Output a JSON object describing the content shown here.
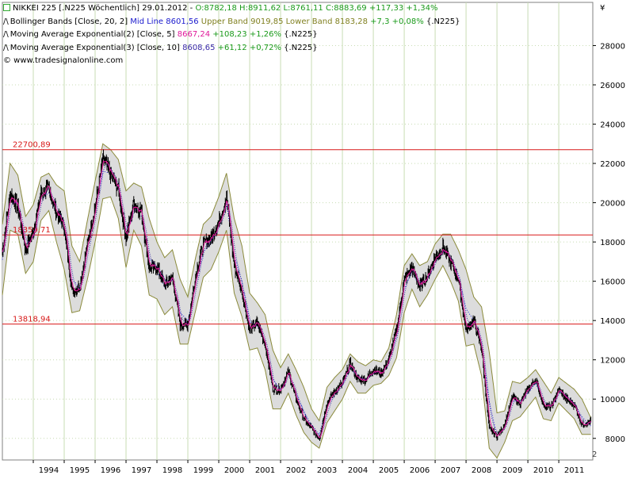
{
  "header": {
    "instrument": "NIKKEI 225 [.N225  Wöchentlich] 29.01.2012 -",
    "ohlc": "O:8782,18 H:8911,62 L:8761,11 C:8883,69 +117,33 +1,34%",
    "bb_prefix": "Bollinger Bands [Close, 20, 2]",
    "bb_mid": "Mid Line 8601,56",
    "bb_bands": "Upper Band 9019,85 Lower Band 8183,28",
    "bb_change": "+7,3 +0,08%",
    "bb_suffix": "{.N225}",
    "ema2_prefix": "Moving Average Exponential(2) [Close, 5]",
    "ema2_value": "8667,24",
    "ema2_change": "+108,23 +1,26%",
    "ema2_suffix": "{.N225}",
    "ema3_prefix": "Moving Average Exponential(3) [Close, 10]",
    "ema3_value": "8608,65",
    "ema3_change": "+61,12 +0,72%",
    "ema3_suffix": "{.N225}",
    "copyright": "© www.tradesignalonline.com"
  },
  "colors": {
    "candles": "#000000",
    "band_fill": "#dcdcdc",
    "band_line": "#8a8a3a",
    "mid_line": "#1a1adc",
    "ema5": "#e0189a",
    "ema10": "#3a2aa8",
    "hline": "#d81818",
    "grid": "#c8dcb4",
    "up_text": "#1a9a1a",
    "ema5_text": "#e0189a",
    "mid_text": "#1a1acd",
    "band_text": "#808020"
  },
  "chart_data": {
    "type": "line",
    "title": "NIKKEI 225 [.N225  Wöchentlich] 29.01.2012",
    "ylabel": "¥",
    "ylim": [
      6900,
      30200
    ],
    "y_ticks": [
      8000,
      10000,
      12000,
      14000,
      16000,
      18000,
      20000,
      22000,
      24000,
      26000,
      28000
    ],
    "x_ticks": [
      "1994",
      "1995",
      "1996",
      "1997",
      "1998",
      "1999",
      "2000",
      "2001",
      "2002",
      "2003",
      "2004",
      "2005",
      "2006",
      "2007",
      "2008",
      "2009",
      "2010",
      "2011"
    ],
    "xlim": [
      1993.0,
      2012.1
    ],
    "grid": true,
    "hlines": [
      {
        "value": 22700.89,
        "label": "22700,89"
      },
      {
        "value": 18359.71,
        "label": "18359,71"
      },
      {
        "value": 13818.94,
        "label": "13818,94"
      }
    ],
    "series": [
      {
        "name": "NIKKEI 225",
        "x": [
          1993.0,
          1993.25,
          1993.5,
          1993.75,
          1994.0,
          1994.25,
          1994.5,
          1994.75,
          1995.0,
          1995.25,
          1995.5,
          1995.75,
          1996.0,
          1996.25,
          1996.5,
          1996.75,
          1997.0,
          1997.25,
          1997.5,
          1997.75,
          1998.0,
          1998.25,
          1998.5,
          1998.75,
          1999.0,
          1999.25,
          1999.5,
          1999.75,
          2000.0,
          2000.25,
          2000.5,
          2000.75,
          2001.0,
          2001.25,
          2001.5,
          2001.75,
          2002.0,
          2002.25,
          2002.5,
          2002.75,
          2003.0,
          2003.25,
          2003.5,
          2003.75,
          2004.0,
          2004.25,
          2004.5,
          2004.75,
          2005.0,
          2005.25,
          2005.5,
          2005.75,
          2006.0,
          2006.25,
          2006.5,
          2006.75,
          2007.0,
          2007.25,
          2007.5,
          2007.75,
          2008.0,
          2008.25,
          2008.5,
          2008.75,
          2009.0,
          2009.25,
          2009.5,
          2009.75,
          2010.0,
          2010.25,
          2010.5,
          2010.75,
          2011.0,
          2011.25,
          2011.5,
          2011.75,
          2012.05
        ],
        "values": [
          17500,
          20500,
          19800,
          17600,
          18500,
          20500,
          20700,
          19500,
          18800,
          15500,
          15700,
          17900,
          19800,
          22200,
          21500,
          20700,
          18200,
          20000,
          19500,
          16700,
          16700,
          15800,
          16200,
          13800,
          13800,
          16300,
          17900,
          18200,
          19000,
          20300,
          16800,
          15500,
          13500,
          13900,
          12800,
          10500,
          10500,
          11400,
          10000,
          9000,
          8500,
          8000,
          9800,
          10400,
          10800,
          11800,
          11000,
          11000,
          11500,
          11300,
          12000,
          13500,
          16100,
          16700,
          15700,
          16300,
          17200,
          17700,
          17000,
          16100,
          13500,
          14000,
          12600,
          8500,
          8100,
          8700,
          10100,
          9800,
          10500,
          11000,
          9700,
          9600,
          10500,
          10000,
          9700,
          8700,
          8884
        ]
      },
      {
        "name": "Upper Band",
        "x": [
          1993.0,
          1993.25,
          1993.5,
          1993.75,
          1994.0,
          1994.25,
          1994.5,
          1994.75,
          1995.0,
          1995.25,
          1995.5,
          1995.75,
          1996.0,
          1996.25,
          1996.5,
          1996.75,
          1997.0,
          1997.25,
          1997.5,
          1997.75,
          1998.0,
          1998.25,
          1998.5,
          1998.75,
          1999.0,
          1999.25,
          1999.5,
          1999.75,
          2000.0,
          2000.25,
          2000.5,
          2000.75,
          2001.0,
          2001.25,
          2001.5,
          2001.75,
          2002.0,
          2002.25,
          2002.5,
          2002.75,
          2003.0,
          2003.25,
          2003.5,
          2003.75,
          2004.0,
          2004.25,
          2004.5,
          2004.75,
          2005.0,
          2005.25,
          2005.5,
          2005.75,
          2006.0,
          2006.25,
          2006.5,
          2006.75,
          2007.0,
          2007.25,
          2007.5,
          2007.75,
          2008.0,
          2008.25,
          2008.5,
          2008.75,
          2009.0,
          2009.25,
          2009.5,
          2009.75,
          2010.0,
          2010.25,
          2010.5,
          2010.75,
          2011.0,
          2011.25,
          2011.5,
          2011.75,
          2012.05
        ],
        "values": [
          18900,
          22000,
          21400,
          19300,
          19900,
          21300,
          21500,
          20900,
          20600,
          17800,
          17000,
          19100,
          21100,
          23000,
          22700,
          22200,
          20600,
          21000,
          20800,
          19200,
          18000,
          17200,
          17600,
          16100,
          15200,
          17200,
          18900,
          19300,
          20300,
          21500,
          19200,
          17800,
          15400,
          14900,
          14300,
          12500,
          11600,
          12300,
          11500,
          10600,
          9500,
          8900,
          10600,
          11100,
          11500,
          12300,
          11900,
          11700,
          12000,
          11900,
          12600,
          14300,
          16800,
          17400,
          16800,
          17000,
          17900,
          18400,
          18400,
          17600,
          16600,
          15200,
          14700,
          12400,
          9300,
          9400,
          10900,
          10800,
          11100,
          11500,
          10900,
          10300,
          11100,
          10800,
          10500,
          10000,
          9000
        ]
      },
      {
        "name": "Lower Band",
        "x": [
          1993.0,
          1993.25,
          1993.5,
          1993.75,
          1994.0,
          1994.25,
          1994.5,
          1994.75,
          1995.0,
          1995.25,
          1995.5,
          1995.75,
          1996.0,
          1996.25,
          1996.5,
          1996.75,
          1997.0,
          1997.25,
          1997.5,
          1997.75,
          1998.0,
          1998.25,
          1998.5,
          1998.75,
          1999.0,
          1999.25,
          1999.5,
          1999.75,
          2000.0,
          2000.25,
          2000.5,
          2000.75,
          2001.0,
          2001.25,
          2001.5,
          2001.75,
          2002.0,
          2002.25,
          2002.5,
          2002.75,
          2003.0,
          2003.25,
          2003.5,
          2003.75,
          2004.0,
          2004.25,
          2004.5,
          2004.75,
          2005.0,
          2005.25,
          2005.5,
          2005.75,
          2006.0,
          2006.25,
          2006.5,
          2006.75,
          2007.0,
          2007.25,
          2007.5,
          2007.75,
          2008.0,
          2008.25,
          2008.5,
          2008.75,
          2009.0,
          2009.25,
          2009.5,
          2009.75,
          2010.0,
          2010.25,
          2010.5,
          2010.75,
          2011.0,
          2011.25,
          2011.5,
          2011.75,
          2012.05
        ],
        "values": [
          15300,
          18600,
          18400,
          16400,
          17000,
          19100,
          19600,
          18000,
          16600,
          14400,
          14500,
          16100,
          18000,
          20200,
          20300,
          19200,
          16700,
          18600,
          17800,
          15300,
          15100,
          14300,
          14700,
          12800,
          12800,
          14500,
          16200,
          16600,
          17500,
          18600,
          15400,
          14200,
          12500,
          12600,
          11500,
          9500,
          9500,
          10300,
          9200,
          8300,
          7800,
          7500,
          8800,
          9400,
          10000,
          10900,
          10300,
          10300,
          10700,
          10800,
          11200,
          12100,
          14400,
          15600,
          14700,
          15300,
          16100,
          16800,
          16000,
          15000,
          12700,
          12800,
          11200,
          7500,
          7000,
          7800,
          8900,
          9100,
          9600,
          10100,
          9000,
          8900,
          9800,
          9400,
          9000,
          8200,
          8200
        ]
      },
      {
        "name": "Mid Line",
        "x": [
          1993.0,
          1993.25,
          1993.5,
          1993.75,
          1994.0,
          1994.25,
          1994.5,
          1994.75,
          1995.0,
          1995.25,
          1995.5,
          1995.75,
          1996.0,
          1996.25,
          1996.5,
          1996.75,
          1997.0,
          1997.25,
          1997.5,
          1997.75,
          1998.0,
          1998.25,
          1998.5,
          1998.75,
          1999.0,
          1999.25,
          1999.5,
          1999.75,
          2000.0,
          2000.25,
          2000.5,
          2000.75,
          2001.0,
          2001.25,
          2001.5,
          2001.75,
          2002.0,
          2002.25,
          2002.5,
          2002.75,
          2003.0,
          2003.25,
          2003.5,
          2003.75,
          2004.0,
          2004.25,
          2004.5,
          2004.75,
          2005.0,
          2005.25,
          2005.5,
          2005.75,
          2006.0,
          2006.25,
          2006.5,
          2006.75,
          2007.0,
          2007.25,
          2007.5,
          2007.75,
          2008.0,
          2008.25,
          2008.5,
          2008.75,
          2009.0,
          2009.25,
          2009.5,
          2009.75,
          2010.0,
          2010.25,
          2010.5,
          2010.75,
          2011.0,
          2011.25,
          2011.5,
          2011.75,
          2012.05
        ],
        "values": [
          17100,
          20300,
          19900,
          17800,
          18400,
          20200,
          20500,
          19400,
          18600,
          16100,
          15700,
          17600,
          19500,
          21600,
          21500,
          20700,
          18600,
          19800,
          19300,
          17200,
          16500,
          15700,
          16100,
          14400,
          14000,
          15800,
          17500,
          17900,
          18900,
          20000,
          17300,
          16000,
          13900,
          13700,
          12900,
          11000,
          10500,
          11300,
          10300,
          9400,
          8600,
          8200,
          9700,
          10200,
          10700,
          11600,
          11100,
          11000,
          11300,
          11300,
          11900,
          13200,
          15600,
          16500,
          15700,
          16100,
          17000,
          17600,
          17200,
          16300,
          14600,
          14000,
          12900,
          9900,
          8100,
          8600,
          9900,
          9900,
          10300,
          10800,
          9900,
          9600,
          10400,
          10100,
          9700,
          9100,
          8602
        ]
      }
    ]
  },
  "right_axis_partial_label": "2"
}
